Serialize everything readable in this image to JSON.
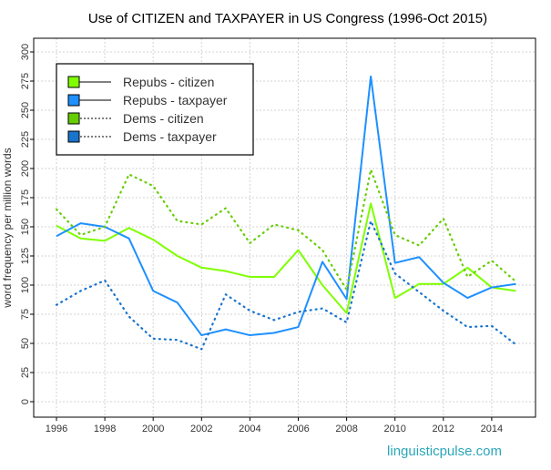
{
  "chart_data": {
    "type": "line",
    "title": "Use of CITIZEN and TAXPAYER in US Congress (1996-Oct 2015)",
    "xlabel": "",
    "ylabel": "word frequency per million words",
    "xlim": [
      1995.3,
      2015.7
    ],
    "ylim": [
      -12,
      312
    ],
    "x_ticks": [
      1996,
      1998,
      2000,
      2002,
      2004,
      2006,
      2008,
      2010,
      2012,
      2014
    ],
    "y_ticks": [
      0,
      25,
      50,
      75,
      100,
      125,
      150,
      175,
      200,
      225,
      250,
      275,
      300
    ],
    "grid": true,
    "legend_position": "top-left",
    "x": [
      1996,
      1997,
      1998,
      1999,
      2000,
      2001,
      2002,
      2003,
      2004,
      2005,
      2006,
      2007,
      2008,
      2009,
      2010,
      2011,
      2012,
      2013,
      2014,
      2015
    ],
    "series": [
      {
        "name": "Repubs - citizen",
        "color": "#7FFF00",
        "style": "solid",
        "values": [
          151,
          140,
          138,
          149,
          139,
          125,
          115,
          112,
          107,
          107,
          130,
          100,
          76,
          170,
          89,
          101,
          101,
          115,
          98,
          95
        ]
      },
      {
        "name": "Repubs - taxpayer",
        "color": "#1E90FF",
        "style": "solid",
        "values": [
          142,
          153,
          150,
          140,
          95,
          85,
          57,
          62,
          57,
          59,
          64,
          120,
          88,
          279,
          119,
          124,
          102,
          89,
          98,
          101
        ]
      },
      {
        "name": "Dems - citizen",
        "color": "#66CD00",
        "style": "dotted",
        "values": [
          165,
          143,
          150,
          195,
          185,
          155,
          152,
          166,
          136,
          152,
          147,
          130,
          96,
          199,
          143,
          134,
          157,
          107,
          121,
          103
        ]
      },
      {
        "name": "Dems - taxpayer",
        "color": "#1874CD",
        "style": "dotted",
        "values": [
          83,
          95,
          104,
          73,
          54,
          53,
          45,
          92,
          78,
          70,
          77,
          80,
          68,
          155,
          110,
          94,
          78,
          64,
          65,
          49
        ]
      }
    ]
  },
  "watermark": "linguisticpulse.com",
  "watermark_color": "#2AA6B8"
}
